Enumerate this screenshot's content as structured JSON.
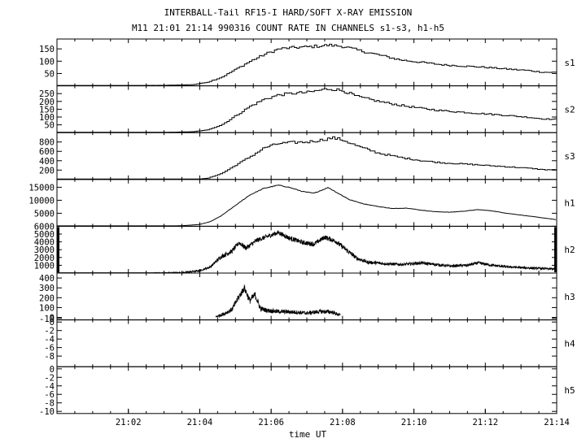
{
  "title": "INTERBALL-Tail RF15-I HARD/SOFT X-RAY EMISSION",
  "subtitle": "M11  21:01 21:14 990316  COUNT RATE IN CHANNELS s1-s3, h1-h5",
  "chart_data": {
    "type": "line",
    "title": "INTERBALL-Tail RF15-I HARD/SOFT X-RAY EMISSION",
    "subtitle": "M11  21:01 21:14 990316  COUNT RATE IN CHANNELS s1-s3, h1-h5",
    "xlabel": "time UT",
    "x_range_minutes": [
      0.0,
      14.0
    ],
    "x_ticks": [
      {
        "label": "21:02",
        "x": 2
      },
      {
        "label": "21:04",
        "x": 4
      },
      {
        "label": "21:06",
        "x": 6
      },
      {
        "label": "21:08",
        "x": 8
      },
      {
        "label": "21:10",
        "x": 10
      },
      {
        "label": "21:12",
        "x": 12
      },
      {
        "label": "21:14",
        "x": 14
      }
    ],
    "panels": [
      {
        "name": "s1",
        "ylim": [
          0,
          190
        ],
        "yticks": [
          {
            "label": "150",
            "v": 150
          },
          {
            "label": "100",
            "v": 100
          },
          {
            "label": "50",
            "v": 50
          }
        ],
        "style": "step",
        "x_start": 0.0,
        "x_end": 14.0,
        "points": [
          [
            0,
            0
          ],
          [
            3,
            2
          ],
          [
            3.8,
            5
          ],
          [
            4.2,
            15
          ],
          [
            4.6,
            35
          ],
          [
            5.0,
            68
          ],
          [
            5.4,
            100
          ],
          [
            5.8,
            128
          ],
          [
            6.2,
            150
          ],
          [
            6.6,
            155
          ],
          [
            7.0,
            158
          ],
          [
            7.6,
            165
          ],
          [
            8.0,
            160
          ],
          [
            8.4,
            145
          ],
          [
            9.0,
            125
          ],
          [
            9.6,
            105
          ],
          [
            10.2,
            95
          ],
          [
            10.8,
            85
          ],
          [
            11.4,
            80
          ],
          [
            12.0,
            75
          ],
          [
            12.6,
            68
          ],
          [
            13.2,
            62
          ],
          [
            13.6,
            55
          ],
          [
            14.0,
            55
          ]
        ]
      },
      {
        "name": "s2",
        "ylim": [
          0,
          300
        ],
        "yticks": [
          {
            "label": "250",
            "v": 250
          },
          {
            "label": "200",
            "v": 200
          },
          {
            "label": "150",
            "v": 150
          },
          {
            "label": "100",
            "v": 100
          },
          {
            "label": "50",
            "v": 50
          }
        ],
        "style": "step",
        "x_start": 0.0,
        "x_end": 14.0,
        "points": [
          [
            0,
            0
          ],
          [
            3,
            2
          ],
          [
            3.8,
            6
          ],
          [
            4.2,
            18
          ],
          [
            4.6,
            50
          ],
          [
            5.0,
            110
          ],
          [
            5.4,
            170
          ],
          [
            5.8,
            215
          ],
          [
            6.2,
            242
          ],
          [
            6.6,
            252
          ],
          [
            7.0,
            258
          ],
          [
            7.6,
            282
          ],
          [
            8.0,
            268
          ],
          [
            8.4,
            230
          ],
          [
            9.0,
            200
          ],
          [
            9.6,
            175
          ],
          [
            10.2,
            155
          ],
          [
            10.8,
            140
          ],
          [
            11.4,
            130
          ],
          [
            12.0,
            120
          ],
          [
            12.6,
            110
          ],
          [
            13.2,
            98
          ],
          [
            13.6,
            88
          ],
          [
            14.0,
            85
          ]
        ]
      },
      {
        "name": "s3",
        "ylim": [
          0,
          1000
        ],
        "yticks": [
          {
            "label": "800",
            "v": 800
          },
          {
            "label": "600",
            "v": 600
          },
          {
            "label": "400",
            "v": 400
          },
          {
            "label": "200",
            "v": 200
          }
        ],
        "style": "step",
        "x_start": 3.8,
        "x_end": 14.0,
        "points": [
          [
            3.8,
            0
          ],
          [
            4.2,
            25
          ],
          [
            4.6,
            130
          ],
          [
            5.0,
            310
          ],
          [
            5.4,
            490
          ],
          [
            5.8,
            680
          ],
          [
            6.2,
            770
          ],
          [
            6.6,
            790
          ],
          [
            7.0,
            800
          ],
          [
            7.4,
            845
          ],
          [
            7.7,
            890
          ],
          [
            8.0,
            840
          ],
          [
            8.4,
            710
          ],
          [
            9.0,
            560
          ],
          [
            9.6,
            470
          ],
          [
            10.2,
            400
          ],
          [
            10.8,
            355
          ],
          [
            11.4,
            330
          ],
          [
            12.0,
            300
          ],
          [
            12.6,
            270
          ],
          [
            13.2,
            240
          ],
          [
            13.6,
            210
          ],
          [
            14.0,
            205
          ]
        ]
      },
      {
        "name": "h1",
        "ylim": [
          0,
          18000
        ],
        "yticks": [
          {
            "label": "15000",
            "v": 15000
          },
          {
            "label": "10000",
            "v": 10000
          },
          {
            "label": "5000",
            "v": 5000
          }
        ],
        "style": "line",
        "x_start": 2.7,
        "x_end": 14.0,
        "points": [
          [
            2.7,
            0
          ],
          [
            3.5,
            200
          ],
          [
            4.0,
            700
          ],
          [
            4.3,
            1800
          ],
          [
            4.6,
            4000
          ],
          [
            5.0,
            8000
          ],
          [
            5.4,
            12000
          ],
          [
            5.8,
            14600
          ],
          [
            6.2,
            15800
          ],
          [
            6.5,
            15000
          ],
          [
            6.9,
            13300
          ],
          [
            7.2,
            12700
          ],
          [
            7.6,
            14900
          ],
          [
            7.9,
            12500
          ],
          [
            8.2,
            10200
          ],
          [
            8.6,
            8600
          ],
          [
            9.0,
            7600
          ],
          [
            9.4,
            6800
          ],
          [
            9.8,
            7000
          ],
          [
            10.2,
            6200
          ],
          [
            10.6,
            5600
          ],
          [
            11.0,
            5400
          ],
          [
            11.4,
            5800
          ],
          [
            11.8,
            6400
          ],
          [
            12.2,
            5900
          ],
          [
            12.6,
            5000
          ],
          [
            13.0,
            4300
          ],
          [
            13.4,
            3600
          ],
          [
            13.8,
            2900
          ],
          [
            14.0,
            2500
          ]
        ]
      },
      {
        "name": "h2",
        "ylim": [
          0,
          6000
        ],
        "yticks": [
          {
            "label": "6000",
            "v": 6000
          },
          {
            "label": "5000",
            "v": 5000
          },
          {
            "label": "4000",
            "v": 4000
          },
          {
            "label": "3000",
            "v": 3000
          },
          {
            "label": "2000",
            "v": 2000
          },
          {
            "label": "1000",
            "v": 1000
          }
        ],
        "style": "noisy",
        "x_start": 2.7,
        "x_end": 14.0,
        "noise": 300,
        "points": [
          [
            2.7,
            0
          ],
          [
            3.5,
            50
          ],
          [
            4.0,
            300
          ],
          [
            4.3,
            800
          ],
          [
            4.6,
            2100
          ],
          [
            4.9,
            2800
          ],
          [
            5.1,
            3900
          ],
          [
            5.3,
            3200
          ],
          [
            5.6,
            4200
          ],
          [
            5.9,
            4700
          ],
          [
            6.2,
            5200
          ],
          [
            6.5,
            4500
          ],
          [
            6.9,
            3900
          ],
          [
            7.2,
            3700
          ],
          [
            7.5,
            4600
          ],
          [
            7.8,
            4100
          ],
          [
            8.1,
            3000
          ],
          [
            8.4,
            1900
          ],
          [
            8.7,
            1400
          ],
          [
            9.2,
            1200
          ],
          [
            9.7,
            1100
          ],
          [
            10.2,
            1300
          ],
          [
            10.6,
            1100
          ],
          [
            11.0,
            900
          ],
          [
            11.5,
            1000
          ],
          [
            11.8,
            1300
          ],
          [
            12.2,
            1000
          ],
          [
            12.6,
            800
          ],
          [
            13.0,
            700
          ],
          [
            13.5,
            600
          ],
          [
            14.0,
            500
          ]
        ]
      },
      {
        "name": "h3",
        "ylim": [
          -25,
          450
        ],
        "yticks": [
          {
            "label": "400",
            "v": 400
          },
          {
            "label": "300",
            "v": 300
          },
          {
            "label": "200",
            "v": 200
          },
          {
            "label": "100",
            "v": 100
          },
          {
            "label": "0",
            "v": 0
          },
          {
            "label": "-10",
            "v": -10
          }
        ],
        "style": "noisy",
        "x_start": 4.45,
        "x_end": 7.95,
        "noise": 35,
        "points": [
          [
            4.45,
            5
          ],
          [
            4.7,
            40
          ],
          [
            4.9,
            80
          ],
          [
            5.1,
            210
          ],
          [
            5.25,
            300
          ],
          [
            5.4,
            170
          ],
          [
            5.55,
            230
          ],
          [
            5.7,
            90
          ],
          [
            5.9,
            70
          ],
          [
            6.2,
            60
          ],
          [
            6.6,
            55
          ],
          [
            7.0,
            45
          ],
          [
            7.4,
            60
          ],
          [
            7.7,
            55
          ],
          [
            7.95,
            20
          ]
        ]
      },
      {
        "name": "h4",
        "ylim": [
          -10.5,
          0.5
        ],
        "yticks": [
          {
            "label": "-8",
            "v": -8
          },
          {
            "label": "-6",
            "v": -6
          },
          {
            "label": "-4",
            "v": -4
          },
          {
            "label": "-2",
            "v": -2
          },
          {
            "label": "0",
            "v": 0
          }
        ],
        "style": "none",
        "points": []
      },
      {
        "name": "h5",
        "ylim": [
          -10.5,
          0.5
        ],
        "yticks": [
          {
            "label": "-10",
            "v": -10
          },
          {
            "label": "-8",
            "v": -8
          },
          {
            "label": "-6",
            "v": -6
          },
          {
            "label": "-4",
            "v": -4
          },
          {
            "label": "-2",
            "v": -2
          },
          {
            "label": "0",
            "v": 0
          }
        ],
        "style": "none",
        "points": []
      }
    ]
  }
}
